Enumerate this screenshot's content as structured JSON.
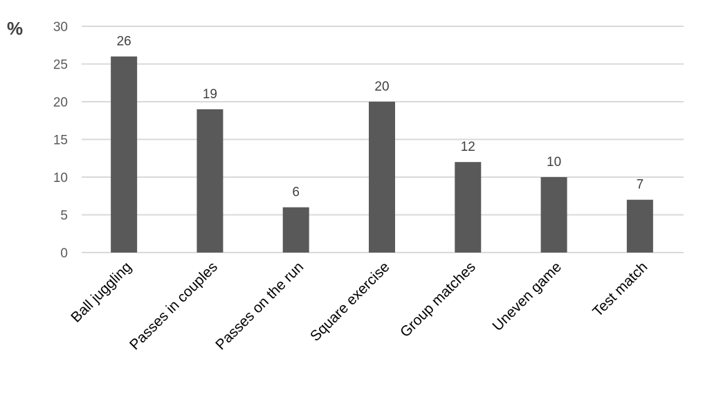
{
  "chart_data": {
    "type": "bar",
    "ylabel": "%",
    "categories": [
      "Ball juggling",
      "Passes in couples",
      "Passes on the run",
      "Square exercise",
      "Group matches",
      "Uneven game",
      "Test match"
    ],
    "values": [
      26,
      19,
      6,
      20,
      12,
      10,
      7
    ],
    "ylim": [
      0,
      30
    ],
    "yticks": [
      0,
      5,
      10,
      15,
      20,
      25,
      30
    ],
    "grid": true,
    "data_labels": true,
    "colors": {
      "bar": "#595959",
      "grid": "#d9d9d9",
      "text": "#404040"
    }
  }
}
